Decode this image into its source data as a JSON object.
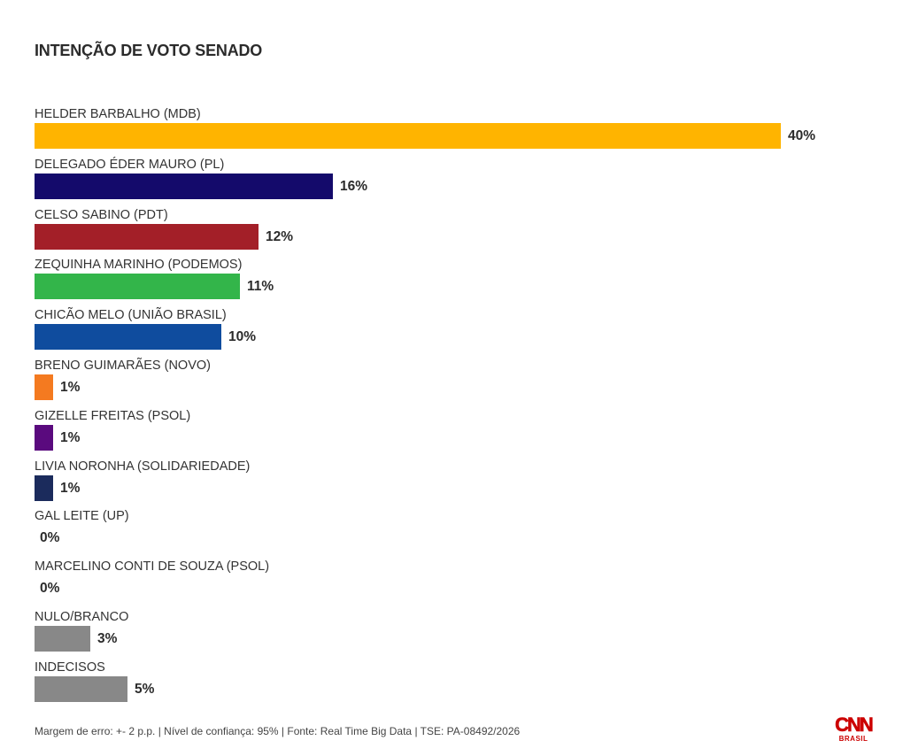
{
  "chart_data": {
    "type": "bar",
    "orientation": "horizontal",
    "title": "INTENÇÃO DE VOTO SENADO",
    "value_suffix": "%",
    "xlim": [
      0,
      40
    ],
    "grid": false,
    "legend": "none",
    "categories": [
      "HELDER BARBALHO (MDB)",
      "DELEGADO ÉDER MAURO (PL)",
      "CELSO SABINO (PDT)",
      "ZEQUINHA MARINHO (PODEMOS)",
      "CHICÃO MELO (UNIÃO BRASIL)",
      "BRENO GUIMARÃES (NOVO)",
      "GIZELLE FREITAS (PSOL)",
      "LIVIA NORONHA (SOLIDARIEDADE)",
      "GAL LEITE (UP)",
      "MARCELINO CONTI DE SOUZA (PSOL)",
      "NULO/BRANCO",
      "INDECISOS"
    ],
    "values": [
      40,
      16,
      12,
      11,
      10,
      1,
      1,
      1,
      0,
      0,
      3,
      5
    ],
    "colors": [
      "#FFB400",
      "#140A6B",
      "#A31F28",
      "#33B54A",
      "#0F4C9E",
      "#F47A20",
      "#5A0A7E",
      "#1B2B5C",
      "#888888",
      "#888888",
      "#888888",
      "#888888"
    ]
  },
  "footer": {
    "note": "Margem de erro: +- 2 p.p. | Nível de confiança: 95% | Fonte: Real Time Big Data | TSE: PA-08492/2026"
  },
  "logo": {
    "name": "CNN",
    "subtitle": "BRASIL",
    "color": "#CC0000"
  }
}
